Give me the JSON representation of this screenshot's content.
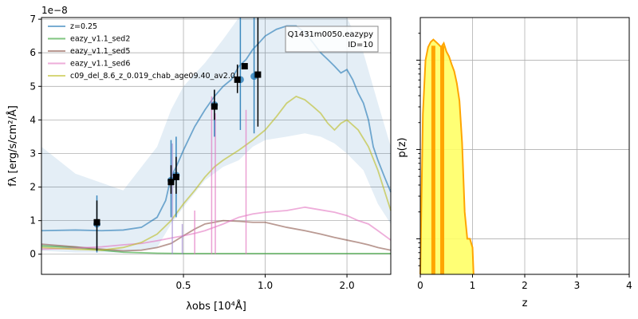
{
  "chart_data": [
    {
      "type": "line",
      "panel": "sed",
      "scale_label": "1e−8",
      "xlabel": "λobs [10⁴Å]",
      "ylabel": "fλ [erg/s/cm²/Å]",
      "x_scale": "log",
      "xlim": [
        0.15,
        2.9
      ],
      "ylim": [
        -0.6,
        7.05
      ],
      "x_ticks": [
        {
          "v": 0.5,
          "label": "0.5"
        },
        {
          "v": 1.0,
          "label": "1.0"
        },
        {
          "v": 2.0,
          "label": "2.0"
        }
      ],
      "y_ticks": [
        0,
        1,
        2,
        3,
        4,
        5,
        6,
        7
      ],
      "grid": true,
      "annotation": [
        "Q1431m0050.eazypy",
        "ID=10"
      ],
      "legend_position": "upper-left",
      "legend": [
        {
          "label": "z=0.25",
          "color": "#1f77b4"
        },
        {
          "label": "eazy_v1.1_sed2",
          "color": "#2ca02c"
        },
        {
          "label": "eazy_v1.1_sed5",
          "color": "#8c564b"
        },
        {
          "label": "eazy_v1.1_sed6",
          "color": "#e377c2"
        },
        {
          "label": "c09_del_8.6_z_0.019_chab_age09.40_av2.0",
          "color": "#bcbd22"
        }
      ],
      "band": {
        "color": "#1f77b4",
        "x": [
          0.15,
          0.2,
          0.3,
          0.4,
          0.45,
          0.5,
          0.6,
          0.7,
          0.8,
          0.9,
          1.0,
          1.2,
          1.4,
          1.6,
          1.8,
          2.0,
          2.3,
          2.6,
          2.9
        ],
        "lo": [
          0.1,
          0.05,
          0.05,
          0.2,
          0.9,
          1.4,
          2.2,
          2.6,
          2.8,
          3.2,
          3.4,
          3.5,
          3.6,
          3.5,
          3.3,
          3.0,
          2.5,
          1.5,
          0.9
        ],
        "hi": [
          3.2,
          2.4,
          1.9,
          3.2,
          4.3,
          5.0,
          5.7,
          6.4,
          7.05,
          7.05,
          7.05,
          7.05,
          7.05,
          7.05,
          7.05,
          7.05,
          6.0,
          4.5,
          3.2
        ]
      },
      "series": [
        {
          "name": "z=0.25",
          "color": "#1f77b4",
          "x": [
            0.15,
            0.2,
            0.25,
            0.3,
            0.35,
            0.4,
            0.43,
            0.45,
            0.47,
            0.5,
            0.55,
            0.6,
            0.65,
            0.7,
            0.75,
            0.8,
            0.85,
            0.9,
            0.95,
            1.0,
            1.1,
            1.2,
            1.3,
            1.4,
            1.5,
            1.6,
            1.7,
            1.8,
            1.9,
            2.0,
            2.1,
            2.2,
            2.3,
            2.4,
            2.5,
            2.6,
            2.75,
            2.9
          ],
          "y": [
            0.7,
            0.72,
            0.7,
            0.72,
            0.8,
            1.1,
            1.6,
            2.3,
            2.6,
            3.1,
            3.8,
            4.3,
            4.7,
            5.0,
            5.2,
            5.6,
            5.8,
            6.1,
            6.3,
            6.5,
            6.7,
            6.8,
            6.8,
            6.6,
            6.3,
            6.0,
            5.8,
            5.6,
            5.4,
            5.5,
            5.2,
            4.8,
            4.5,
            4.0,
            3.2,
            2.8,
            2.3,
            1.85
          ]
        },
        {
          "name": "eazy_v1.1_sed2",
          "color": "#2ca02c",
          "x": [
            0.15,
            0.2,
            0.25,
            0.3,
            0.4,
            0.5,
            0.7,
            1.0,
            1.5,
            2.0,
            2.9
          ],
          "y": [
            0.25,
            0.2,
            0.12,
            0.06,
            0.03,
            0.02,
            0.02,
            0.02,
            0.02,
            0.02,
            0.02
          ]
        },
        {
          "name": "eazy_v1.1_sed5",
          "color": "#8c564b",
          "x": [
            0.15,
            0.2,
            0.25,
            0.3,
            0.35,
            0.4,
            0.45,
            0.5,
            0.55,
            0.6,
            0.7,
            0.8,
            0.9,
            1.0,
            1.2,
            1.4,
            1.6,
            1.8,
            2.0,
            2.2,
            2.4,
            2.6,
            2.9
          ],
          "y": [
            0.3,
            0.22,
            0.15,
            0.1,
            0.12,
            0.2,
            0.32,
            0.55,
            0.75,
            0.9,
            1.0,
            0.98,
            0.95,
            0.95,
            0.8,
            0.7,
            0.6,
            0.5,
            0.42,
            0.35,
            0.28,
            0.2,
            0.12
          ]
        },
        {
          "name": "eazy_v1.1_sed6",
          "color": "#e377c2",
          "x": [
            0.15,
            0.2,
            0.25,
            0.3,
            0.35,
            0.4,
            0.45,
            0.5,
            0.55,
            0.6,
            0.7,
            0.8,
            0.9,
            1.0,
            1.2,
            1.4,
            1.6,
            1.8,
            2.0,
            2.2,
            2.4,
            2.6,
            2.9
          ],
          "y": [
            0.15,
            0.18,
            0.22,
            0.28,
            0.32,
            0.4,
            0.48,
            0.55,
            0.62,
            0.7,
            0.9,
            1.1,
            1.2,
            1.25,
            1.3,
            1.4,
            1.32,
            1.25,
            1.15,
            1.0,
            0.9,
            0.7,
            0.42
          ]
        },
        {
          "name": "c09_del_8.6_z_0.019_chab_age09.40_av2.0",
          "color": "#bcbd22",
          "x": [
            0.15,
            0.2,
            0.25,
            0.3,
            0.35,
            0.4,
            0.45,
            0.5,
            0.55,
            0.6,
            0.65,
            0.7,
            0.8,
            0.9,
            1.0,
            1.1,
            1.2,
            1.3,
            1.4,
            1.5,
            1.6,
            1.7,
            1.8,
            1.9,
            2.0,
            2.2,
            2.4,
            2.6,
            2.9
          ],
          "y": [
            0.2,
            0.15,
            0.12,
            0.2,
            0.35,
            0.6,
            1.0,
            1.5,
            1.9,
            2.3,
            2.6,
            2.8,
            3.1,
            3.4,
            3.7,
            4.1,
            4.5,
            4.7,
            4.6,
            4.4,
            4.2,
            3.9,
            3.7,
            3.9,
            4.0,
            3.7,
            3.2,
            2.5,
            1.3
          ]
        }
      ],
      "spikes": [
        {
          "x": 0.455,
          "y": 3.3,
          "color": "#a58fd6"
        },
        {
          "x": 0.495,
          "y": 0.9,
          "color": "#a58fd6"
        },
        {
          "x": 0.55,
          "y": 1.3,
          "color": "#e377c2"
        },
        {
          "x": 0.635,
          "y": 4.7,
          "color": "#e377c2"
        },
        {
          "x": 0.655,
          "y": 4.2,
          "color": "#e377c2"
        },
        {
          "x": 0.85,
          "y": 4.3,
          "color": "#e377c2"
        }
      ],
      "model_points": [
        {
          "x": 0.24,
          "y": 0.9,
          "lo": 0.05,
          "hi": 1.75
        },
        {
          "x": 0.45,
          "y": 2.2,
          "lo": 1.1,
          "hi": 3.4
        },
        {
          "x": 0.47,
          "y": 2.35,
          "lo": 1.1,
          "hi": 3.5
        },
        {
          "x": 0.65,
          "y": 4.45,
          "lo": 3.5,
          "hi": 4.9
        },
        {
          "x": 0.81,
          "y": 5.2,
          "lo": 3.7,
          "hi": 7.05
        },
        {
          "x": 0.91,
          "y": 5.3,
          "lo": 3.6,
          "hi": 7.05
        }
      ],
      "obs_points": [
        {
          "x": 0.24,
          "y": 0.95,
          "lo": 0.1,
          "hi": 1.6
        },
        {
          "x": 0.45,
          "y": 2.15,
          "lo": 1.8,
          "hi": 2.65
        },
        {
          "x": 0.47,
          "y": 2.3,
          "lo": 1.8,
          "hi": 2.9
        },
        {
          "x": 0.65,
          "y": 4.4,
          "lo": 4.0,
          "hi": 4.9
        },
        {
          "x": 0.79,
          "y": 5.2,
          "lo": 4.8,
          "hi": 5.65
        },
        {
          "x": 0.84,
          "y": 5.6,
          "lo": 5.6,
          "hi": 5.6
        },
        {
          "x": 0.94,
          "y": 5.35,
          "lo": 3.8,
          "hi": 7.05
        }
      ]
    },
    {
      "type": "area",
      "panel": "pz",
      "xlabel": "z",
      "ylabel": "p(z)",
      "xlim": [
        0,
        4
      ],
      "y_scale": "log",
      "x_ticks": [
        0,
        1,
        2,
        3,
        4
      ],
      "grid": true,
      "line_color": "#ffa500",
      "fill_color": "#ffff66",
      "x": [
        0.0,
        0.05,
        0.1,
        0.15,
        0.2,
        0.25,
        0.3,
        0.35,
        0.4,
        0.45,
        0.5,
        0.55,
        0.6,
        0.65,
        0.7,
        0.75,
        0.8,
        0.85,
        0.9,
        0.95,
        1.0,
        1.02
      ],
      "y": [
        0.004,
        0.25,
        1.0,
        1.4,
        1.6,
        1.7,
        1.6,
        1.5,
        1.4,
        1.55,
        1.25,
        1.1,
        0.9,
        0.75,
        0.55,
        0.35,
        0.12,
        0.02,
        0.01,
        0.01,
        0.008,
        0.004
      ],
      "ylim": [
        0.004,
        3.0
      ],
      "markers": [
        0.25,
        0.42
      ]
    }
  ]
}
